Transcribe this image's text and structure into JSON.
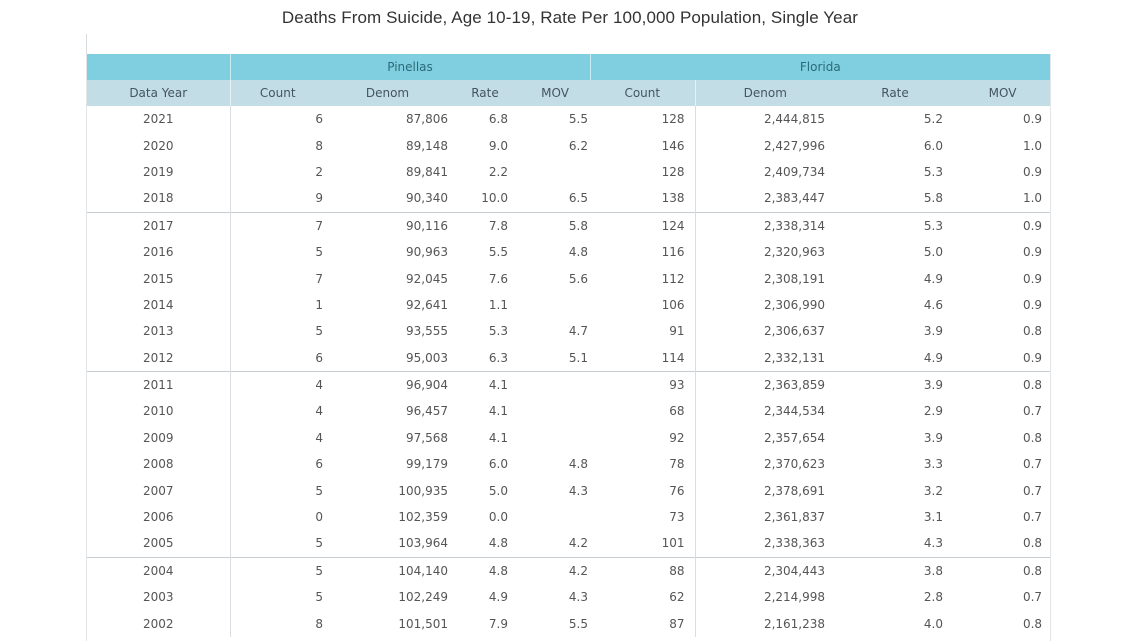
{
  "title": "Deaths From Suicide, Age 10-19, Rate Per 100,000 Population, Single Year",
  "groups": {
    "pinellas": "Pinellas",
    "florida": "Florida"
  },
  "columns": {
    "data_year": "Data Year",
    "p_count": "Count",
    "p_denom": "Denom",
    "p_rate": "Rate",
    "p_mov": "MOV",
    "f_count": "Count",
    "f_denom": "Denom",
    "f_rate": "Rate",
    "f_mov": "MOV"
  },
  "rows": [
    {
      "year": "2021",
      "p_count": "6",
      "p_denom": "87,806",
      "p_rate": "6.8",
      "p_mov": "5.5",
      "f_count": "128",
      "f_denom": "2,444,815",
      "f_rate": "5.2",
      "f_mov": "0.9"
    },
    {
      "year": "2020",
      "p_count": "8",
      "p_denom": "89,148",
      "p_rate": "9.0",
      "p_mov": "6.2",
      "f_count": "146",
      "f_denom": "2,427,996",
      "f_rate": "6.0",
      "f_mov": "1.0"
    },
    {
      "year": "2019",
      "p_count": "2",
      "p_denom": "89,841",
      "p_rate": "2.2",
      "p_mov": "",
      "f_count": "128",
      "f_denom": "2,409,734",
      "f_rate": "5.3",
      "f_mov": "0.9"
    },
    {
      "year": "2018",
      "p_count": "9",
      "p_denom": "90,340",
      "p_rate": "10.0",
      "p_mov": "6.5",
      "f_count": "138",
      "f_denom": "2,383,447",
      "f_rate": "5.8",
      "f_mov": "1.0"
    },
    {
      "year": "2017",
      "p_count": "7",
      "p_denom": "90,116",
      "p_rate": "7.8",
      "p_mov": "5.8",
      "f_count": "124",
      "f_denom": "2,338,314",
      "f_rate": "5.3",
      "f_mov": "0.9"
    },
    {
      "year": "2016",
      "p_count": "5",
      "p_denom": "90,963",
      "p_rate": "5.5",
      "p_mov": "4.8",
      "f_count": "116",
      "f_denom": "2,320,963",
      "f_rate": "5.0",
      "f_mov": "0.9"
    },
    {
      "year": "2015",
      "p_count": "7",
      "p_denom": "92,045",
      "p_rate": "7.6",
      "p_mov": "5.6",
      "f_count": "112",
      "f_denom": "2,308,191",
      "f_rate": "4.9",
      "f_mov": "0.9"
    },
    {
      "year": "2014",
      "p_count": "1",
      "p_denom": "92,641",
      "p_rate": "1.1",
      "p_mov": "",
      "f_count": "106",
      "f_denom": "2,306,990",
      "f_rate": "4.6",
      "f_mov": "0.9"
    },
    {
      "year": "2013",
      "p_count": "5",
      "p_denom": "93,555",
      "p_rate": "5.3",
      "p_mov": "4.7",
      "f_count": "91",
      "f_denom": "2,306,637",
      "f_rate": "3.9",
      "f_mov": "0.8"
    },
    {
      "year": "2012",
      "p_count": "6",
      "p_denom": "95,003",
      "p_rate": "6.3",
      "p_mov": "5.1",
      "f_count": "114",
      "f_denom": "2,332,131",
      "f_rate": "4.9",
      "f_mov": "0.9"
    },
    {
      "year": "2011",
      "p_count": "4",
      "p_denom": "96,904",
      "p_rate": "4.1",
      "p_mov": "",
      "f_count": "93",
      "f_denom": "2,363,859",
      "f_rate": "3.9",
      "f_mov": "0.8"
    },
    {
      "year": "2010",
      "p_count": "4",
      "p_denom": "96,457",
      "p_rate": "4.1",
      "p_mov": "",
      "f_count": "68",
      "f_denom": "2,344,534",
      "f_rate": "2.9",
      "f_mov": "0.7"
    },
    {
      "year": "2009",
      "p_count": "4",
      "p_denom": "97,568",
      "p_rate": "4.1",
      "p_mov": "",
      "f_count": "92",
      "f_denom": "2,357,654",
      "f_rate": "3.9",
      "f_mov": "0.8"
    },
    {
      "year": "2008",
      "p_count": "6",
      "p_denom": "99,179",
      "p_rate": "6.0",
      "p_mov": "4.8",
      "f_count": "78",
      "f_denom": "2,370,623",
      "f_rate": "3.3",
      "f_mov": "0.7"
    },
    {
      "year": "2007",
      "p_count": "5",
      "p_denom": "100,935",
      "p_rate": "5.0",
      "p_mov": "4.3",
      "f_count": "76",
      "f_denom": "2,378,691",
      "f_rate": "3.2",
      "f_mov": "0.7"
    },
    {
      "year": "2006",
      "p_count": "0",
      "p_denom": "102,359",
      "p_rate": "0.0",
      "p_mov": "",
      "f_count": "73",
      "f_denom": "2,361,837",
      "f_rate": "3.1",
      "f_mov": "0.7"
    },
    {
      "year": "2005",
      "p_count": "5",
      "p_denom": "103,964",
      "p_rate": "4.8",
      "p_mov": "4.2",
      "f_count": "101",
      "f_denom": "2,338,363",
      "f_rate": "4.3",
      "f_mov": "0.8"
    },
    {
      "year": "2004",
      "p_count": "5",
      "p_denom": "104,140",
      "p_rate": "4.8",
      "p_mov": "4.2",
      "f_count": "88",
      "f_denom": "2,304,443",
      "f_rate": "3.8",
      "f_mov": "0.8"
    },
    {
      "year": "2003",
      "p_count": "5",
      "p_denom": "102,249",
      "p_rate": "4.9",
      "p_mov": "4.3",
      "f_count": "62",
      "f_denom": "2,214,998",
      "f_rate": "2.8",
      "f_mov": "0.7"
    },
    {
      "year": "2002",
      "p_count": "8",
      "p_denom": "101,501",
      "p_rate": "7.9",
      "p_mov": "5.5",
      "f_count": "87",
      "f_denom": "2,161,238",
      "f_rate": "4.0",
      "f_mov": "0.8"
    }
  ],
  "group_breaks": [
    "2017",
    "2011",
    "2004"
  ],
  "colors": {
    "group_header_bg": "#7fcfe0",
    "column_header_bg": "#c3dde6"
  }
}
